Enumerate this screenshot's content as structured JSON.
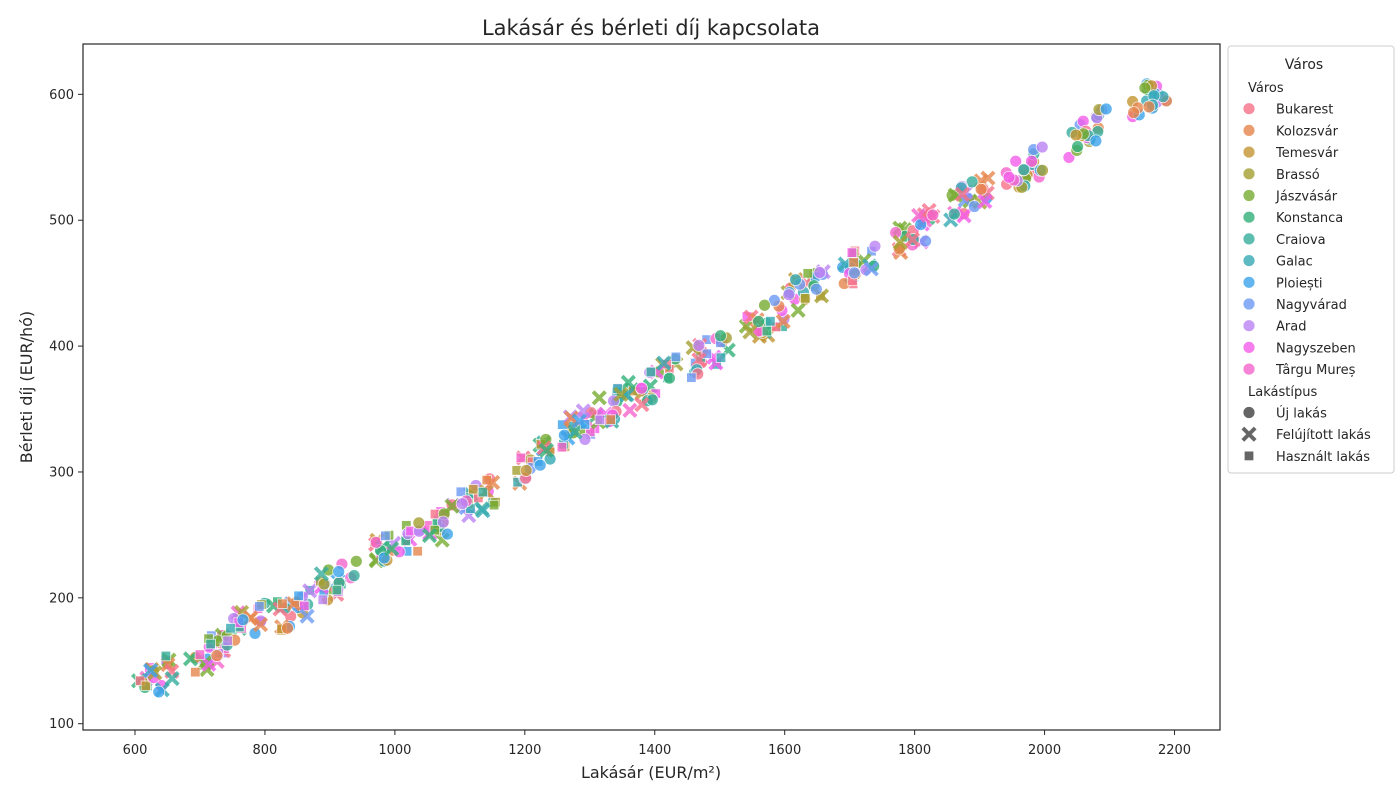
{
  "chart_data": {
    "type": "scatter",
    "title": "Lakásár és bérleti díj kapcsolata",
    "xlabel": "Lakásár (EUR/m²)",
    "ylabel": "Bérleti díj (EUR/hó)",
    "xlim": [
      520,
      2270
    ],
    "ylim": [
      95,
      640
    ],
    "xticks": [
      600,
      800,
      1000,
      1200,
      1400,
      1600,
      1800,
      2000,
      2200
    ],
    "yticks": [
      100,
      200,
      300,
      400,
      500,
      600
    ],
    "grid": false,
    "legend_placement": "outside-right",
    "legend": {
      "title": "Város",
      "hue_title": "Város",
      "style_title": "Lakástípus",
      "cities": [
        {
          "name": "Bukarest",
          "color": "#f77189"
        },
        {
          "name": "Kolozsvár",
          "color": "#e6864c"
        },
        {
          "name": "Temesvár",
          "color": "#c39532"
        },
        {
          "name": "Brassó",
          "color": "#a4a031"
        },
        {
          "name": "Jászvásár",
          "color": "#78ab31"
        },
        {
          "name": "Konstanca",
          "color": "#33b07a"
        },
        {
          "name": "Craiova",
          "color": "#35ad9c"
        },
        {
          "name": "Galac",
          "color": "#37aab4"
        },
        {
          "name": "Ploiești",
          "color": "#3ba3ec"
        },
        {
          "name": "Nagyvárad",
          "color": "#6e9bf4"
        },
        {
          "name": "Arad",
          "color": "#bb83f4"
        },
        {
          "name": "Nagyszeben",
          "color": "#f45deb"
        },
        {
          "name": "Târgu Mureș",
          "color": "#f565cc"
        }
      ],
      "types": [
        {
          "name": "Új lakás",
          "marker": "circle"
        },
        {
          "name": "Felújított lakás",
          "marker": "x"
        },
        {
          "name": "Használt lakás",
          "marker": "square"
        }
      ]
    },
    "clusters": [
      {
        "x": 630,
        "y": 136,
        "types": [
          "square",
          "x",
          "circle"
        ]
      },
      {
        "x": 715,
        "y": 157,
        "types": [
          "square",
          "x",
          "circle"
        ]
      },
      {
        "x": 770,
        "y": 180,
        "types": [
          "square",
          "x",
          "circle"
        ]
      },
      {
        "x": 840,
        "y": 190,
        "types": [
          "square",
          "x",
          "circle"
        ]
      },
      {
        "x": 915,
        "y": 215,
        "types": [
          "square",
          "x",
          "circle"
        ]
      },
      {
        "x": 1000,
        "y": 242,
        "types": [
          "square",
          "x",
          "circle"
        ]
      },
      {
        "x": 1060,
        "y": 255,
        "types": [
          "square",
          "x",
          "circle"
        ]
      },
      {
        "x": 1130,
        "y": 280,
        "types": [
          "square",
          "x",
          "circle"
        ]
      },
      {
        "x": 1215,
        "y": 310,
        "types": [
          "square",
          "x",
          "circle"
        ]
      },
      {
        "x": 1285,
        "y": 335,
        "types": [
          "square",
          "x",
          "circle"
        ]
      },
      {
        "x": 1340,
        "y": 355,
        "types": [
          "square",
          "x",
          "circle"
        ]
      },
      {
        "x": 1405,
        "y": 372,
        "types": [
          "square",
          "x",
          "circle"
        ]
      },
      {
        "x": 1485,
        "y": 395,
        "types": [
          "square",
          "x",
          "circle"
        ]
      },
      {
        "x": 1570,
        "y": 420,
        "types": [
          "square",
          "x",
          "circle"
        ]
      },
      {
        "x": 1635,
        "y": 445,
        "types": [
          "square",
          "x",
          "circle"
        ]
      },
      {
        "x": 1715,
        "y": 465,
        "types": [
          "x",
          "circle",
          "square"
        ]
      },
      {
        "x": 1800,
        "y": 490,
        "types": [
          "x",
          "circle"
        ]
      },
      {
        "x": 1885,
        "y": 518,
        "types": [
          "x",
          "circle"
        ]
      },
      {
        "x": 1970,
        "y": 540,
        "types": [
          "circle"
        ]
      },
      {
        "x": 2065,
        "y": 570,
        "types": [
          "circle"
        ]
      },
      {
        "x": 2160,
        "y": 600,
        "types": [
          "circle"
        ]
      }
    ]
  }
}
